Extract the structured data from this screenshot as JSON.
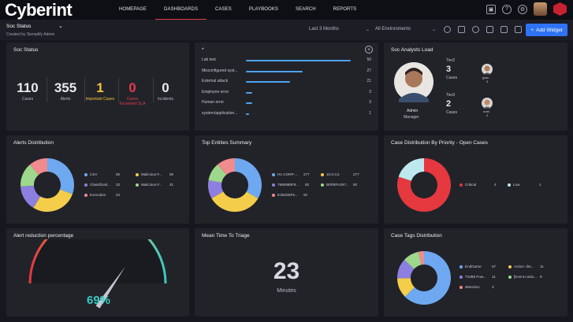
{
  "app": {
    "logo": "Cyberint"
  },
  "nav": [
    "HOMEPAGE",
    "DASHBOARDS",
    "CASES",
    "PLAYBOOKS",
    "SEARCH",
    "REPORTS"
  ],
  "dashboard": {
    "title": "Soc Status",
    "subtitle": "Created by Siemplify Admin",
    "range": "Last 3 Months",
    "environment": "All Environments",
    "add_label": "Add Widget"
  },
  "soc_status": {
    "title": "Soc Status",
    "stats": [
      {
        "value": "110",
        "label": "Cases",
        "color": "#e8e9ef"
      },
      {
        "value": "355",
        "label": "Alerts",
        "color": "#e8e9ef"
      },
      {
        "value": "1",
        "label": "Important Cases",
        "color": "#f2c53d"
      },
      {
        "value": "0",
        "label": "Cases Exceeded SLA",
        "color": "#e23a4b"
      },
      {
        "value": "0",
        "label": "Incidents",
        "color": "#e8e9ef"
      }
    ]
  },
  "bars_widget": {
    "title": "*",
    "rows": [
      {
        "label": "Lab test",
        "value": 50
      },
      {
        "label": "Misconfigured syst...",
        "value": 27
      },
      {
        "label": "External attack",
        "value": 21
      },
      {
        "label": "Employee error",
        "value": 3
      },
      {
        "label": "Human error",
        "value": 3
      },
      {
        "label": "system/application...",
        "value": 1
      }
    ],
    "max": 50
  },
  "analysts": {
    "title": "Soc Analysts Load",
    "manager_label": "Admin",
    "manager_role": "Manager",
    "tiers": [
      {
        "name": "Tier2",
        "count": "3",
        "label": "Cases",
        "member": "jjoan",
        "member_count": "3"
      },
      {
        "name": "Tier3",
        "count": "2",
        "label": "Cases",
        "member": "matt",
        "member_count": "2"
      }
    ]
  },
  "alerts_distribution": {
    "title": "Alerts Distribution",
    "items": [
      {
        "label": "CSV",
        "value": "65"
      },
      {
        "label": "Malicious F...",
        "value": "60"
      },
      {
        "label": "Classificati...",
        "value": "33"
      },
      {
        "label": "Malicious F...",
        "value": "31"
      },
      {
        "label": "Execution",
        "value": "24"
      }
    ]
  },
  "top_entities": {
    "title": "Top Entities Summary",
    "items": [
      {
        "label": "H1-CORP-...",
        "value": "277"
      },
      {
        "label": "10.0.3.2",
        "value": "277"
      },
      {
        "label": "7965988F9...",
        "value": "92"
      },
      {
        "label": "B0FBFA297...",
        "value": "92"
      },
      {
        "label": "E364D6F5...",
        "value": "92"
      }
    ]
  },
  "priority_distribution": {
    "title": "Case Distribution By Priority - Open Cases",
    "items": [
      {
        "label": "Critical",
        "value": "4"
      },
      {
        "label": "Low",
        "value": "1"
      }
    ]
  },
  "alert_reduction": {
    "title": "Alert reduction percentage",
    "percent": 69,
    "display": "69%"
  },
  "mttt": {
    "title": "Mean Time To Triage",
    "value": "23",
    "unit": "Minutes"
  },
  "case_tags": {
    "title": "Case Tags Distribution",
    "items": [
      {
        "label": "EndGame",
        "value": "57"
      },
      {
        "label": "Action: det...",
        "value": "11"
      },
      {
        "label": "T1088 Pow...",
        "value": "11"
      },
      {
        "label": "[Event.custo...",
        "value": "9"
      },
      {
        "label": "detection",
        "value": "3"
      }
    ]
  },
  "colors": {
    "blue": "#6ea8f0",
    "yellow": "#f4cd4a",
    "purple": "#8d7fe0",
    "green": "#9ed88c",
    "pink": "#f08b8e",
    "red": "#e5383f",
    "cyan": "#bde9ee",
    "accent": "#2f73f5"
  }
}
